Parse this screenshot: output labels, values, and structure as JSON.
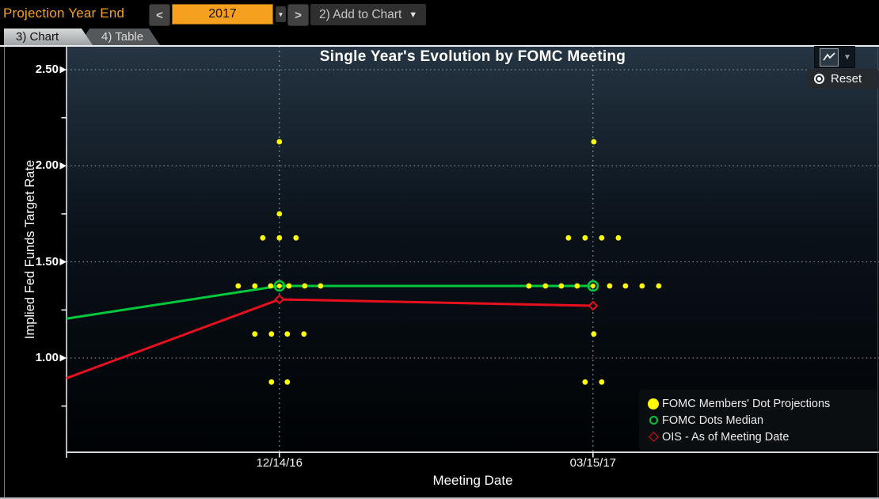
{
  "toolbar": {
    "label": "Projection Year End",
    "prev_icon": "<",
    "year_value": "2017",
    "year_caret_icon": "▼",
    "next_icon": ">",
    "add_to_chart_label": "2) Add to Chart",
    "add_caret_icon": "▼",
    "accent_color": "#f5a11f"
  },
  "tabs": [
    {
      "label": "3) Chart",
      "active": true
    },
    {
      "label": "4) Table",
      "active": false
    }
  ],
  "chart_controls": {
    "chart_type_icon": "line-chart",
    "chart_type_caret": "▼",
    "reset_label": "Reset"
  },
  "chart_data": {
    "type": "scatter",
    "title": "Single Year's Evolution by FOMC Meeting",
    "xlabel": "Meeting Date",
    "ylabel": "Implied Fed Funds Target Rate",
    "ylim": [
      0.51,
      2.62
    ],
    "yticks": [
      "2.50",
      "2.00",
      "1.50",
      "1.00"
    ],
    "ytick_values": [
      2.5,
      2.0,
      1.5,
      1.0
    ],
    "y_minor_ticks": [
      2.25,
      1.75,
      1.25,
      0.75
    ],
    "xticks": [
      "12/14/16",
      "03/15/17"
    ],
    "grid": "dotted",
    "legend_position": "lower-right",
    "colors": {
      "dots": "#ffff00",
      "median": "#00c83c",
      "ois": "#e8101e"
    },
    "meetings": [
      {
        "date": "12/14/16",
        "xfrac": 0.262,
        "median": 1.375,
        "ois": 1.305,
        "dot_rows": [
          {
            "value": 2.125,
            "offsets": [
              0
            ]
          },
          {
            "value": 1.75,
            "offsets": [
              0
            ]
          },
          {
            "value": 1.625,
            "offsets": [
              -21,
              0,
              21
            ]
          },
          {
            "value": 1.375,
            "offsets": [
              -52,
              -31,
              -11,
              12,
              32,
              52
            ]
          },
          {
            "value": 1.125,
            "offsets": [
              -31,
              -10,
              10,
              31
            ]
          },
          {
            "value": 0.875,
            "offsets": [
              -10,
              10
            ]
          }
        ]
      },
      {
        "date": "03/15/17",
        "xfrac": 0.648,
        "median": 1.375,
        "ois": 1.272,
        "dot_rows": [
          {
            "value": 2.125,
            "offsets": [
              1
            ]
          },
          {
            "value": 1.625,
            "offsets": [
              -31,
              -10,
              11,
              32
            ]
          },
          {
            "value": 1.375,
            "offsets": [
              -81,
              -60,
              -40,
              -20,
              21,
              41,
              62,
              83
            ]
          },
          {
            "value": 1.125,
            "offsets": [
              1
            ]
          },
          {
            "value": 0.875,
            "offsets": [
              -10,
              11
            ]
          }
        ]
      }
    ],
    "series": [
      {
        "name": "FOMC Dots Median",
        "color": "#00c83c",
        "points": [
          {
            "xfrac": 0,
            "value": 1.205
          },
          {
            "xfrac": 0.262,
            "value": 1.375
          },
          {
            "xfrac": 0.648,
            "value": 1.375
          }
        ]
      },
      {
        "name": "OIS - As of Meeting Date",
        "color": "#e8101e",
        "points": [
          {
            "xfrac": 0,
            "value": 0.895
          },
          {
            "xfrac": 0.262,
            "value": 1.305
          },
          {
            "xfrac": 0.648,
            "value": 1.272
          }
        ]
      }
    ],
    "legend": [
      {
        "marker": "filled-circle",
        "color": "#ffff00",
        "label": "FOMC Members' Dot Projections"
      },
      {
        "marker": "open-circle",
        "color": "#00c83c",
        "label": "FOMC Dots Median"
      },
      {
        "marker": "open-diamond",
        "color": "#e8101e",
        "label": "OIS - As of Meeting Date"
      }
    ]
  }
}
